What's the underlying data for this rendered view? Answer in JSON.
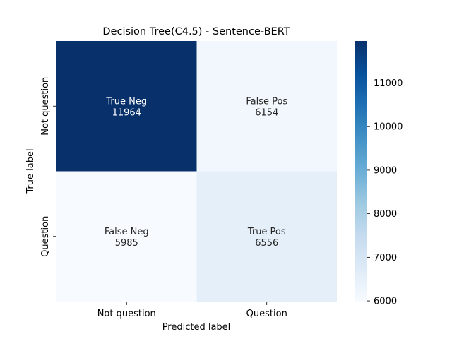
{
  "chart_data": {
    "type": "heatmap",
    "title": "Decision Tree(C4.5) - Sentence-BERT",
    "xlabel": "Predicted label",
    "ylabel": "True label",
    "x_categories": [
      "Not question",
      "Question"
    ],
    "y_categories": [
      "Not question",
      "Question"
    ],
    "cells": [
      [
        {
          "label": "True Neg",
          "value": 11964
        },
        {
          "label": "False Pos",
          "value": 6154
        }
      ],
      [
        {
          "label": "False Neg",
          "value": 5985
        },
        {
          "label": "True Pos",
          "value": 6556
        }
      ]
    ],
    "colorbar": {
      "range": [
        5985,
        11964
      ],
      "ticks": [
        "6000",
        "7000",
        "8000",
        "9000",
        "10000",
        "11000"
      ],
      "colormap": "Blues"
    },
    "colors": {
      "low": "#f7fbff",
      "high": "#08306b"
    }
  }
}
